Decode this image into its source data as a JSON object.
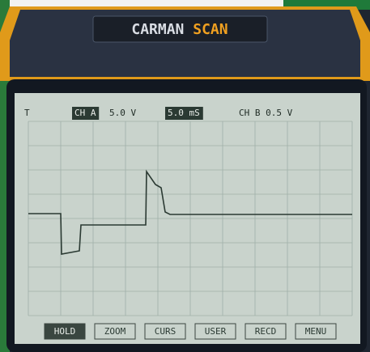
{
  "device": {
    "brand": "CARMAN",
    "brand_suffix": "SCAN"
  },
  "screen": {
    "header": [
      "T",
      "CH A",
      "5.0 V",
      "5.0 mS",
      "CH B 0.5 V"
    ],
    "buttons": [
      "HOLD",
      "ZOOM",
      "CURS",
      "USER",
      "RECD",
      "MENU"
    ]
  }
}
